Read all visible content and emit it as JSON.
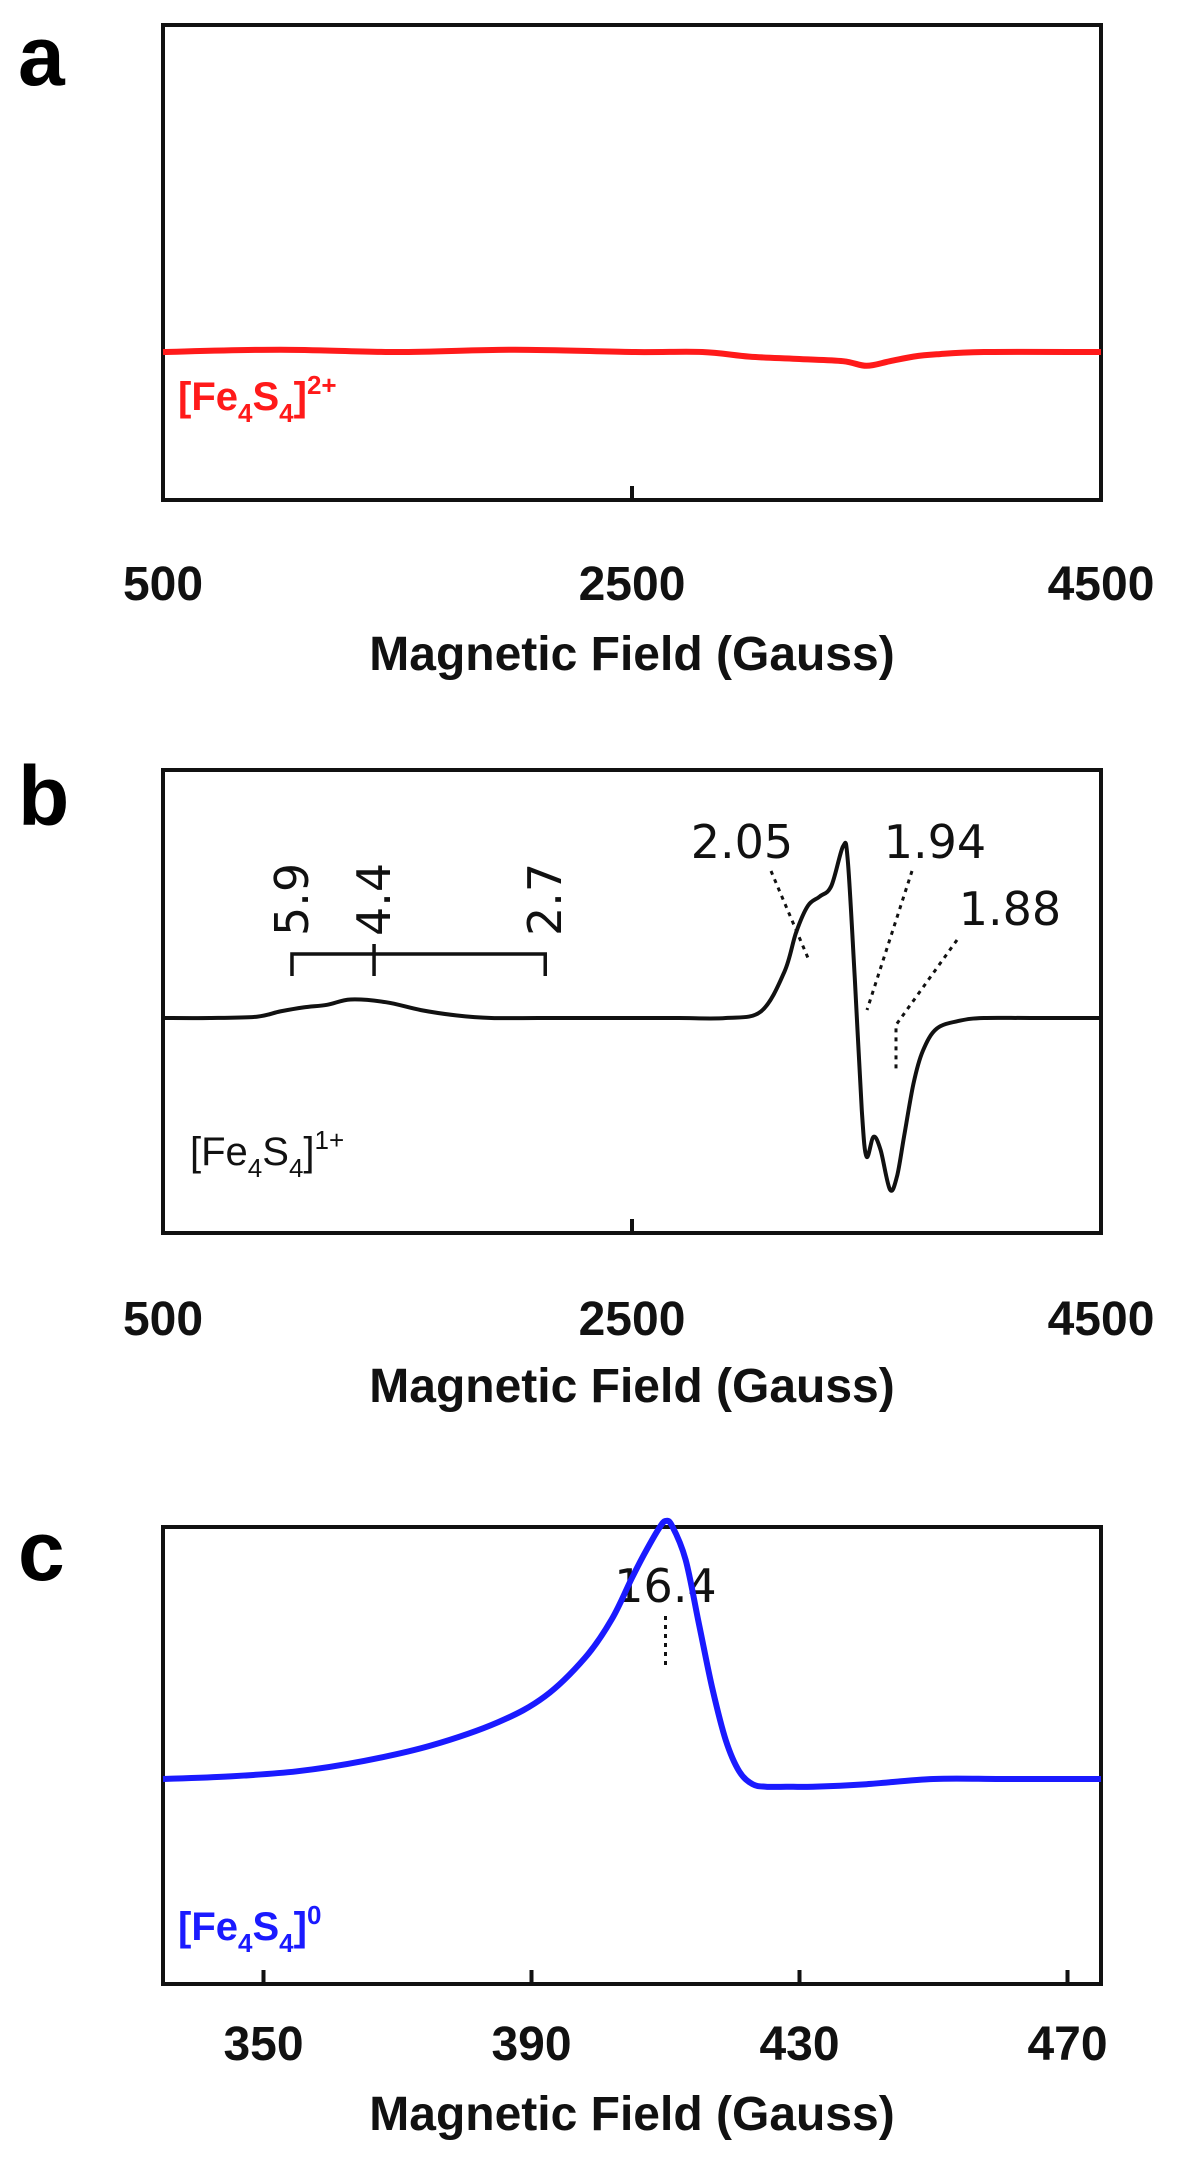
{
  "chart_data": [
    {
      "panel": "a",
      "type": "line",
      "species_label": "[Fe4S4]2+",
      "species_parts": {
        "base": "[Fe",
        "sub1": "4",
        "mid": "S",
        "sub2": "4",
        "tail": "]",
        "sup": "2+"
      },
      "xlabel": "Magnetic Field (Gauss)",
      "xlim": [
        500,
        4500
      ],
      "xticks": [
        500,
        2500,
        4500
      ],
      "color": "#ff1a1a",
      "series": [
        {
          "x": [
            500,
            1000,
            1500,
            2000,
            2500,
            2800,
            3000,
            3200,
            3400,
            3500,
            3600,
            3700,
            3800,
            4000,
            4500
          ],
          "y": [
            0,
            0.01,
            0.0,
            0.01,
            0.0,
            0.0,
            -0.02,
            -0.03,
            -0.04,
            -0.06,
            -0.04,
            -0.02,
            -0.01,
            0.0,
            0.0
          ]
        }
      ],
      "ylim": [
        -1,
        1
      ]
    },
    {
      "panel": "b",
      "type": "line",
      "species_label": "[Fe4S4]1+",
      "species_parts": {
        "base": "[Fe",
        "sub1": "4",
        "mid": "S",
        "sub2": "4",
        "tail": "]",
        "sup": "1+"
      },
      "xlabel": "Magnetic Field (Gauss)",
      "xlim": [
        500,
        4500
      ],
      "xticks": [
        500,
        2500,
        4500
      ],
      "color": "#111111",
      "series": [
        {
          "x": [
            500,
            700,
            900,
            1000,
            1100,
            1200,
            1300,
            1450,
            1600,
            1750,
            1900,
            2100,
            2300,
            2500,
            2700,
            2900,
            3050,
            3150,
            3200,
            3250,
            3300,
            3350,
            3400,
            3420,
            3450,
            3480,
            3500,
            3530,
            3560,
            3600,
            3630,
            3660,
            3700,
            3740,
            3800,
            3900,
            4000,
            4200,
            4500
          ],
          "y": [
            0,
            0,
            0.01,
            0.05,
            0.08,
            0.1,
            0.14,
            0.12,
            0.06,
            0.02,
            0,
            0,
            0,
            0,
            0,
            0,
            0.05,
            0.35,
            0.65,
            0.85,
            0.92,
            1.0,
            1.3,
            1.2,
            0.3,
            -0.7,
            -1.05,
            -0.9,
            -1.0,
            -1.3,
            -1.2,
            -0.9,
            -0.5,
            -0.25,
            -0.08,
            -0.02,
            0,
            0,
            0
          ]
        }
      ],
      "ylim": [
        -2.0,
        2.2
      ],
      "annotations": [
        {
          "text": "2.05",
          "field": 3270
        },
        {
          "text": "1.94",
          "field": 3460
        },
        {
          "text": "1.88",
          "field": 3690
        }
      ],
      "bracket": {
        "labels": [
          "5.9",
          "4.4",
          "2.7"
        ],
        "fields": [
          1050,
          1400,
          2130
        ]
      }
    },
    {
      "panel": "c",
      "type": "line",
      "species_label": "[Fe4S4]0",
      "species_parts": {
        "base": "[Fe",
        "sub1": "4",
        "mid": "S",
        "sub2": "4",
        "tail": "]",
        "sup": "0"
      },
      "xlabel": "Magnetic Field (Gauss)",
      "xlim": [
        335,
        475
      ],
      "xticks": [
        350,
        390,
        430,
        470
      ],
      "color": "#1a1aff",
      "series": [
        {
          "x": [
            335,
            345,
            355,
            365,
            375,
            385,
            392,
            398,
            402,
            405,
            407,
            409,
            410,
            411,
            413,
            415,
            417,
            419,
            421,
            423,
            425,
            428,
            432,
            440,
            450,
            460,
            470,
            475
          ],
          "y": [
            0,
            0.01,
            0.03,
            0.07,
            0.13,
            0.22,
            0.32,
            0.47,
            0.62,
            0.78,
            0.88,
            0.97,
            1.0,
            0.98,
            0.85,
            0.6,
            0.35,
            0.15,
            0.03,
            -0.02,
            -0.03,
            -0.03,
            -0.03,
            -0.02,
            0.0,
            0.0,
            0.0,
            0.0
          ]
        }
      ],
      "ylim": [
        -0.6,
        1.45
      ],
      "annotations": [
        {
          "text": "16.4",
          "field": 410
        }
      ]
    }
  ]
}
